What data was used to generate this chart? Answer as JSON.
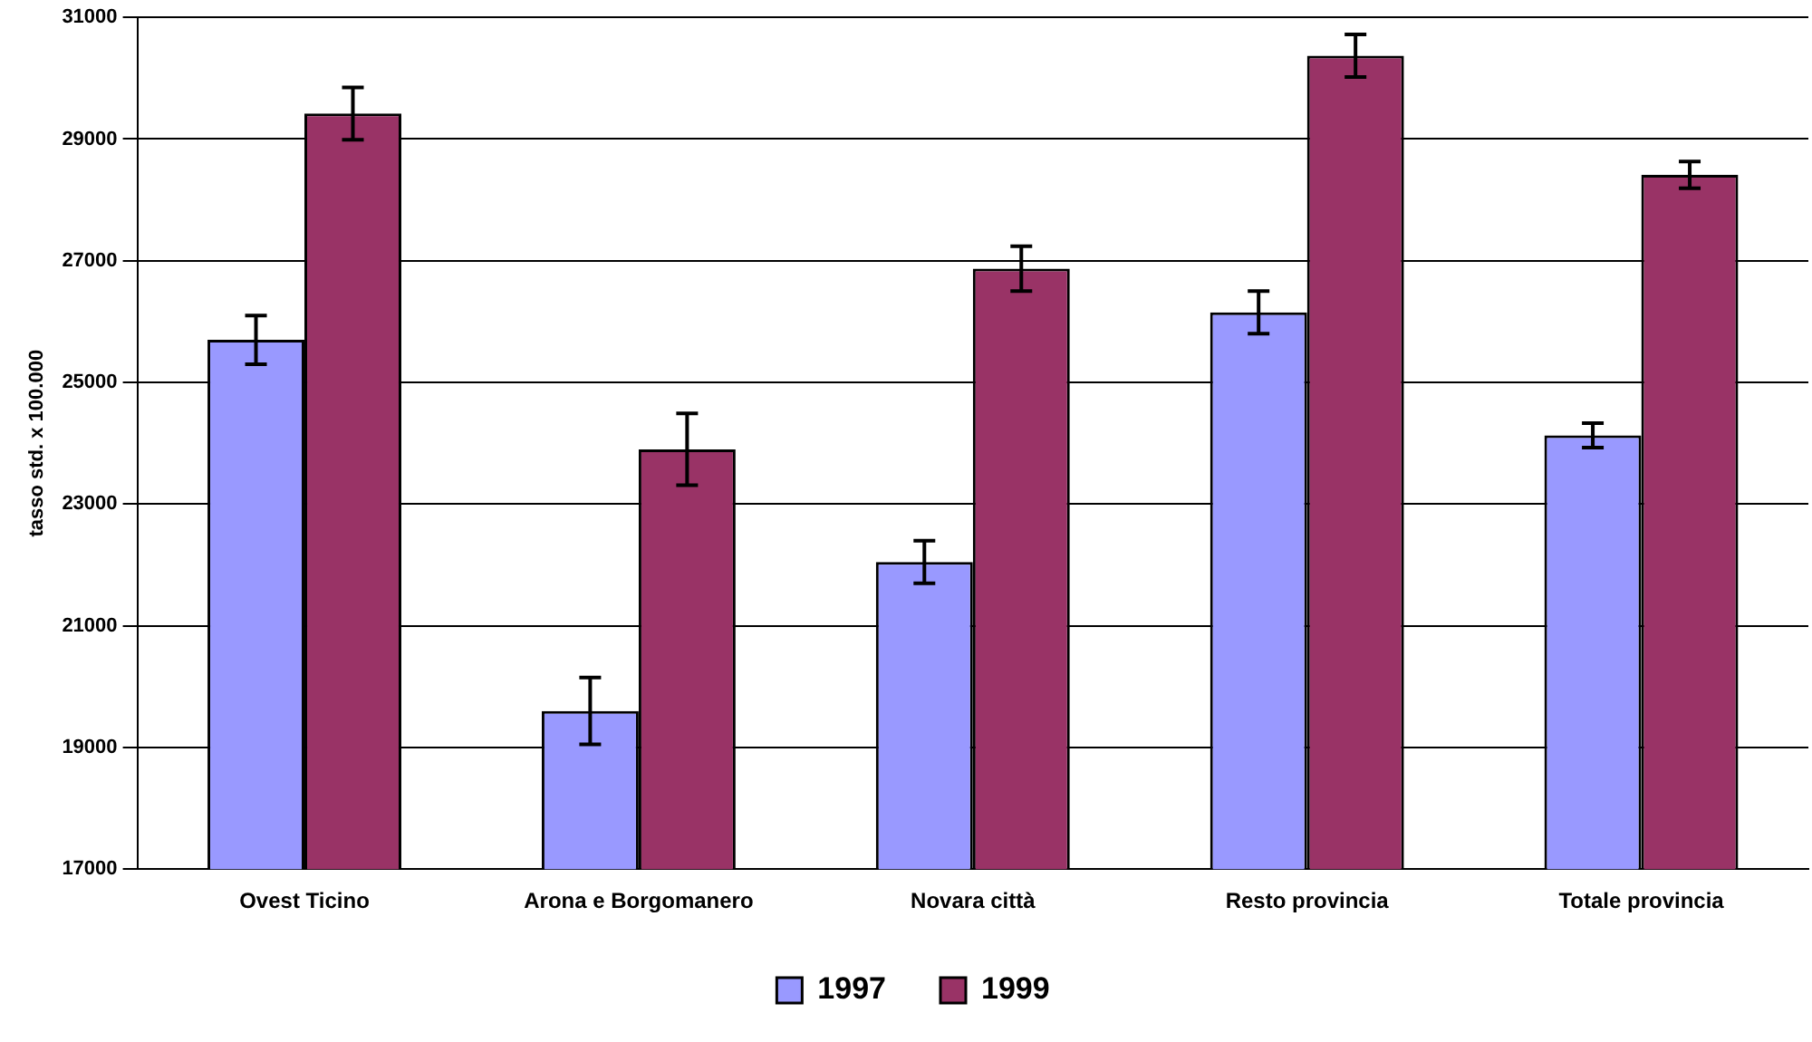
{
  "chart_data": {
    "type": "bar",
    "ylabel": "tasso std. x 100.000",
    "categories": [
      "Ovest Ticino",
      "Arona e Borgomanero",
      "Novara città",
      "Resto provincia",
      "Totale provincia"
    ],
    "series": [
      {
        "name": "1997",
        "color": "#9999ff",
        "values": [
          25700,
          19600,
          22050,
          26150,
          24130
        ],
        "errors": [
          400,
          550,
          350,
          350,
          200
        ]
      },
      {
        "name": "1999",
        "color": "#993366",
        "values": [
          29420,
          23900,
          26870,
          30370,
          28410
        ],
        "errors": [
          430,
          590,
          370,
          350,
          220
        ]
      }
    ],
    "ylim": [
      17000,
      31000
    ],
    "yticks": [
      17000,
      19000,
      21000,
      23000,
      25000,
      27000,
      29000,
      31000
    ],
    "grid": "y",
    "legend": "bottom"
  }
}
